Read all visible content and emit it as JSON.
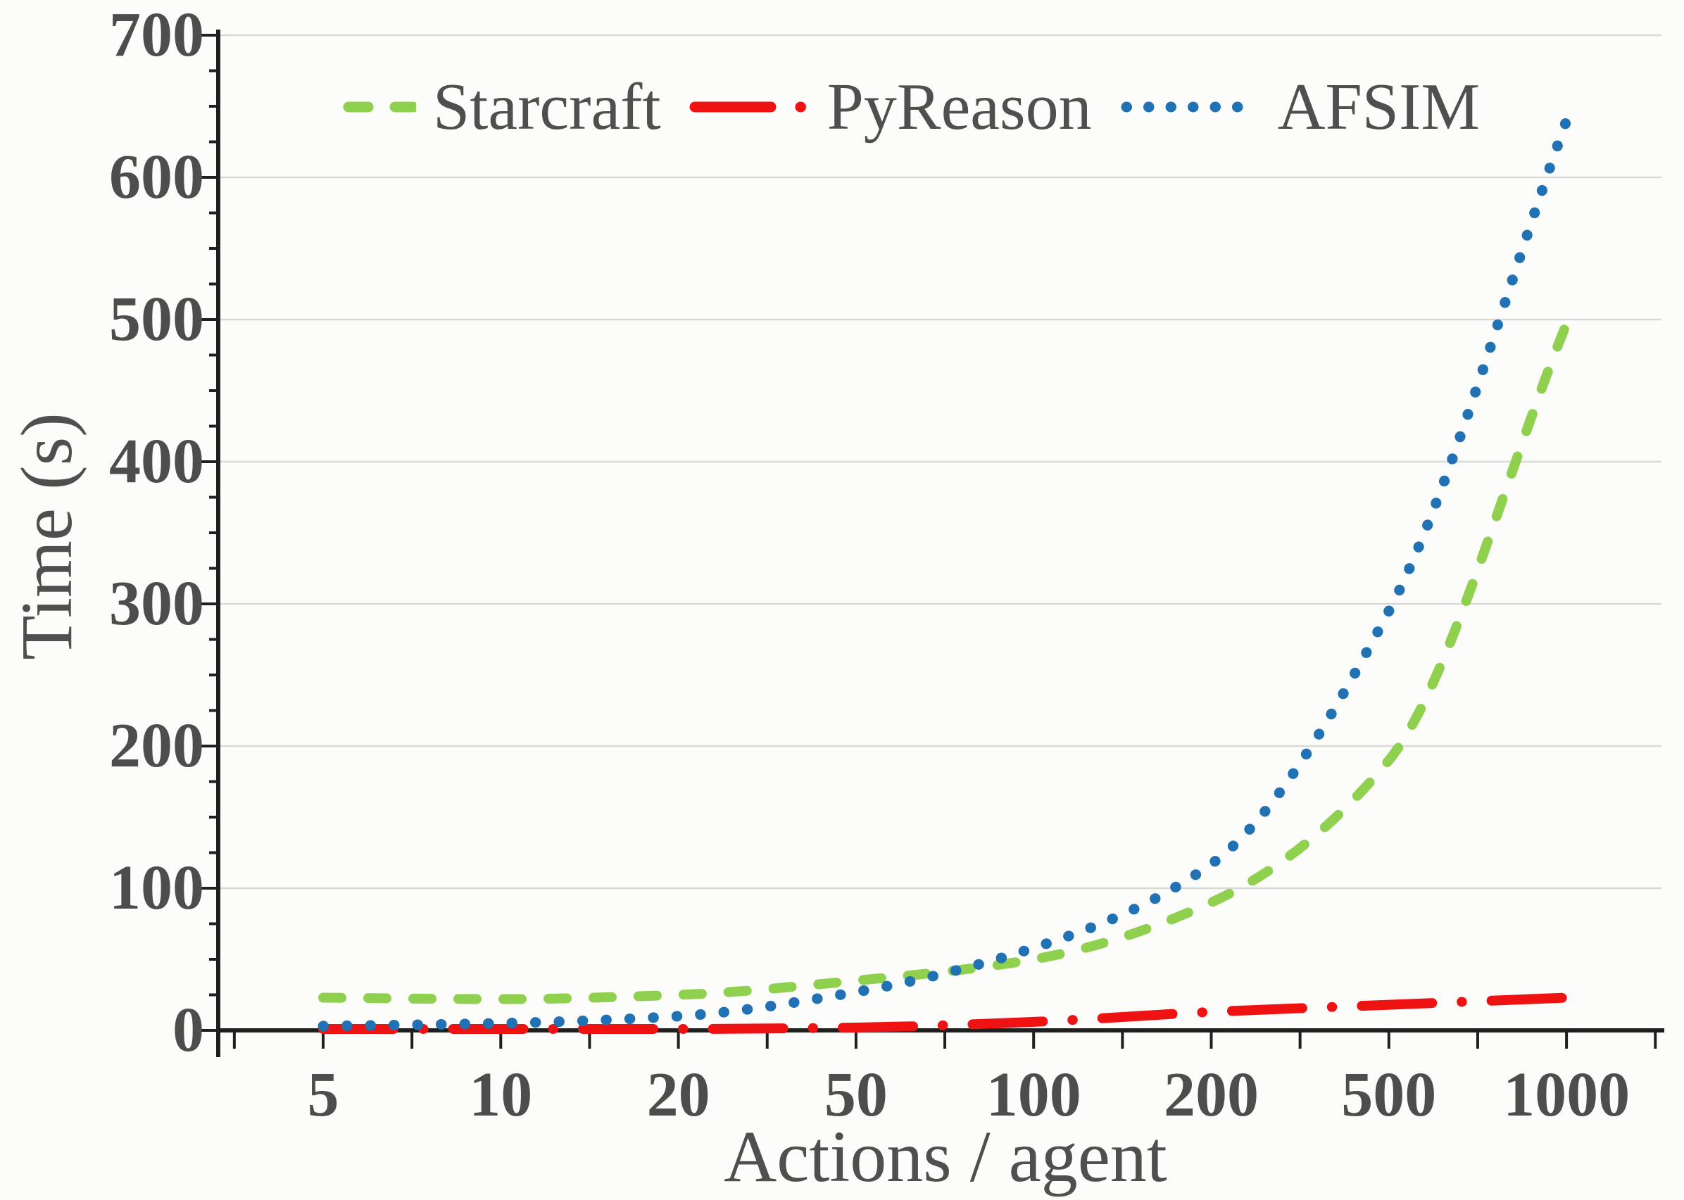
{
  "figure": {
    "bg_color": "#fcfcfa",
    "text_color": "#4d4d4d",
    "axis_color": "#1f1f1f",
    "grid_color": "#d9d9d9"
  },
  "chart_data": {
    "type": "line",
    "title": "",
    "xlabel": "Actions / agent",
    "ylabel": "Time (s)",
    "x_scale": "categorical-evenly-spaced",
    "categories": [
      "5",
      "10",
      "20",
      "50",
      "100",
      "200",
      "500",
      "1000"
    ],
    "ylim": [
      0,
      700
    ],
    "y_ticks": [
      "0",
      "100",
      "200",
      "300",
      "400",
      "500",
      "600",
      "700"
    ],
    "y_tick_values": [
      0,
      100,
      200,
      300,
      400,
      500,
      600,
      700
    ],
    "y_minor_tick_step": 25,
    "grid": "horizontal",
    "legend_position": "top-inside",
    "series": [
      {
        "name": "Starcraft",
        "color": "#8fd14f",
        "style": "dashed",
        "values": [
          23,
          22,
          25,
          35,
          50,
          90,
          190,
          497
        ]
      },
      {
        "name": "PyReason",
        "color": "#ee1212",
        "style": "dash-dot",
        "values": [
          1,
          1,
          1,
          2,
          6,
          13,
          18,
          23
        ]
      },
      {
        "name": "AFSIM",
        "color": "#2171b5",
        "style": "dotted",
        "values": [
          3,
          5,
          10,
          27,
          58,
          117,
          295,
          640
        ]
      }
    ]
  }
}
